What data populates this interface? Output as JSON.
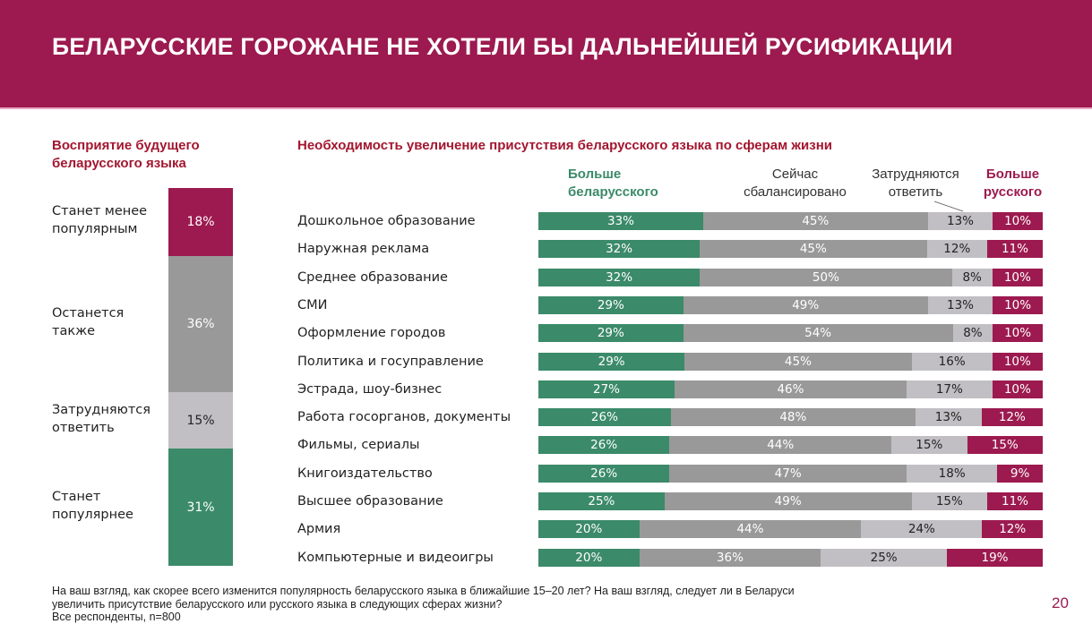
{
  "header": {
    "title": "БЕЛАРУССКИЕ ГОРОЖАНЕ НЕ ХОТЕЛИ БЫ ДАЛЬНЕЙШЕЙ РУСИФИКАЦИИ"
  },
  "colors": {
    "brand": "#9c1a4f",
    "green": "#3b8a6a",
    "gray_dark": "#999999",
    "gray_light": "#c1bfc3",
    "title_red": "#a3162f"
  },
  "chart_data": [
    {
      "type": "bar",
      "orientation": "vertical-stacked",
      "title": "Восприятие будущего беларусского языка",
      "unit": "%",
      "segments": [
        {
          "label": "Станет менее популярным",
          "value": 18,
          "display": "18%",
          "color": "#9c1a4f"
        },
        {
          "label": "Останется также",
          "value": 36,
          "display": "36%",
          "color": "#999999"
        },
        {
          "label": "Затрудняются ответить",
          "value": 15,
          "display": "15%",
          "color": "#c1bfc3"
        },
        {
          "label": "Станет популярнее",
          "value": 31,
          "display": "31%",
          "color": "#3b8a6a"
        }
      ]
    },
    {
      "type": "bar",
      "orientation": "horizontal-stacked-100",
      "title": "Необходимость увеличение присутствия беларусского языка по сферам жизни",
      "unit": "%",
      "legend": [
        {
          "name": "Больше беларусского",
          "line1": "Больше",
          "line2": "беларусского",
          "color": "#3b8a6a"
        },
        {
          "name": "Сейчас сбалансировано",
          "line1": "Сейчас",
          "line2": "сбалансировано",
          "color": "#999999"
        },
        {
          "name": "Затрудняются ответить",
          "line1": "Затрудняются",
          "line2": "ответить",
          "color": "#c1bfc3"
        },
        {
          "name": "Больше русского",
          "line1": "Больше",
          "line2": "русского",
          "color": "#9c1a4f"
        }
      ],
      "categories": [
        "Дошкольное образование",
        "Наружная реклама",
        "Среднее образование",
        "СМИ",
        "Оформление городов",
        "Политика и госуправление",
        "Эстрада, шоу-бизнес",
        "Работа госорганов, документы",
        "Фильмы, сериалы",
        "Книгоиздательство",
        "Высшее образование",
        "Армия",
        "Компьютерные и видеоигры"
      ],
      "series": [
        {
          "name": "Больше беларусского",
          "values": [
            33,
            32,
            32,
            29,
            29,
            29,
            27,
            26,
            26,
            26,
            25,
            20,
            20
          ]
        },
        {
          "name": "Сейчас сбалансировано",
          "values": [
            45,
            45,
            50,
            49,
            54,
            45,
            46,
            48,
            44,
            47,
            49,
            44,
            36
          ]
        },
        {
          "name": "Затрудняются ответить",
          "values": [
            13,
            12,
            8,
            13,
            8,
            16,
            17,
            13,
            15,
            18,
            15,
            24,
            25
          ]
        },
        {
          "name": "Больше русского",
          "values": [
            10,
            11,
            10,
            10,
            10,
            10,
            10,
            12,
            15,
            9,
            11,
            12,
            19
          ]
        }
      ]
    }
  ],
  "footer": {
    "line1": "На ваш взгляд, как скорее всего изменится популярность беларусского языка в ближайшие 15–20 лет? На ваш взгляд, следует ли в Беларуси",
    "line2": "увеличить присутствие беларусского или русского языка в следующих сферах жизни?",
    "line3": "Все респонденты, n=800"
  },
  "page_number": "20"
}
